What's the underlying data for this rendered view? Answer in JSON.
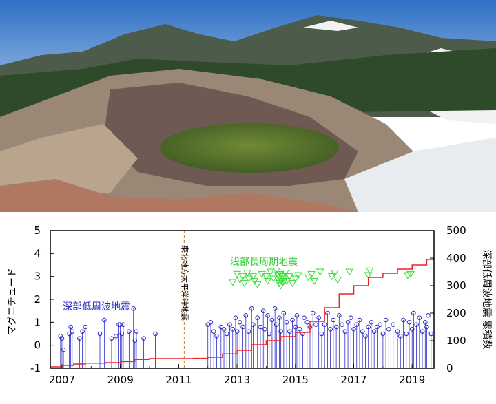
{
  "chart_data": {
    "type": "scatter",
    "title": "",
    "xlabel": "",
    "ylabel_left": "マグニチュード",
    "ylabel_right": "深部低周波地震 累積数",
    "xlim": [
      2006.6,
      2019.75
    ],
    "ylim_left": [
      -1,
      5
    ],
    "ylim_right": [
      0,
      500
    ],
    "x_ticks": [
      2007,
      2009,
      2011,
      2013,
      2015,
      2017,
      2019
    ],
    "y_ticks_left": [
      -1,
      0,
      1,
      2,
      3,
      4,
      5
    ],
    "y_ticks_right": [
      0,
      100,
      200,
      300,
      400,
      500
    ],
    "grid": false,
    "colors": {
      "deep": "#2a2ac8",
      "shallow": "#33dd33",
      "cumulative": "#ee2222",
      "event_line": "#e08a3c"
    },
    "annotations": [
      {
        "text": "深部低周波地震",
        "color": "#2a2ac8"
      },
      {
        "text": "浅部長周期地震",
        "color": "#33cc33"
      },
      {
        "text": "東北地方太平洋沖地震",
        "x": 2011.19,
        "orientation": "vertical"
      }
    ],
    "series": [
      {
        "name": "深部低周波地震",
        "style": "stem",
        "points": [
          [
            2006.95,
            0.4
          ],
          [
            2007.0,
            0.3
          ],
          [
            2007.05,
            -0.2
          ],
          [
            2007.25,
            0.5
          ],
          [
            2007.3,
            0.8
          ],
          [
            2007.35,
            0.6
          ],
          [
            2007.6,
            0.3
          ],
          [
            2007.7,
            0.6
          ],
          [
            2007.8,
            0.8
          ],
          [
            2008.3,
            0.5
          ],
          [
            2008.45,
            1.1
          ],
          [
            2008.7,
            0.3
          ],
          [
            2008.85,
            0.4
          ],
          [
            2008.95,
            0.9
          ],
          [
            2009.0,
            0.9
          ],
          [
            2009.05,
            0.5
          ],
          [
            2009.1,
            0.9
          ],
          [
            2009.3,
            0.6
          ],
          [
            2009.45,
            1.6
          ],
          [
            2009.5,
            0.2
          ],
          [
            2009.55,
            0.6
          ],
          [
            2009.8,
            0.3
          ],
          [
            2010.2,
            0.5
          ],
          [
            2012.0,
            0.9
          ],
          [
            2012.1,
            1.0
          ],
          [
            2012.2,
            0.6
          ],
          [
            2012.3,
            0.4
          ],
          [
            2012.45,
            0.8
          ],
          [
            2012.55,
            0.7
          ],
          [
            2012.65,
            0.5
          ],
          [
            2012.75,
            0.9
          ],
          [
            2012.85,
            0.7
          ],
          [
            2012.95,
            1.2
          ],
          [
            2013.0,
            0.6
          ],
          [
            2013.1,
            1.0
          ],
          [
            2013.2,
            0.8
          ],
          [
            2013.3,
            1.3
          ],
          [
            2013.4,
            0.6
          ],
          [
            2013.5,
            1.6
          ],
          [
            2013.55,
            0.9
          ],
          [
            2013.7,
            1.2
          ],
          [
            2013.8,
            0.8
          ],
          [
            2013.9,
            1.5
          ],
          [
            2013.95,
            0.7
          ],
          [
            2014.05,
            1.3
          ],
          [
            2014.1,
            0.5
          ],
          [
            2014.2,
            1.1
          ],
          [
            2014.3,
            1.6
          ],
          [
            2014.35,
            0.9
          ],
          [
            2014.45,
            1.2
          ],
          [
            2014.5,
            0.6
          ],
          [
            2014.6,
            1.4
          ],
          [
            2014.7,
            1.0
          ],
          [
            2014.8,
            0.6
          ],
          [
            2014.9,
            1.1
          ],
          [
            2015.0,
            0.8
          ],
          [
            2015.05,
            1.3
          ],
          [
            2015.15,
            0.7
          ],
          [
            2015.25,
            0.5
          ],
          [
            2015.3,
            1.2
          ],
          [
            2015.4,
            1.0
          ],
          [
            2015.5,
            0.8
          ],
          [
            2015.6,
            1.4
          ],
          [
            2015.7,
            0.9
          ],
          [
            2015.8,
            1.2
          ],
          [
            2015.9,
            0.5
          ],
          [
            2016.0,
            0.9
          ],
          [
            2016.1,
            1.4
          ],
          [
            2016.2,
            0.7
          ],
          [
            2016.3,
            1.1
          ],
          [
            2016.4,
            0.8
          ],
          [
            2016.5,
            1.3
          ],
          [
            2016.6,
            0.9
          ],
          [
            2016.7,
            0.6
          ],
          [
            2016.8,
            1.0
          ],
          [
            2016.9,
            1.2
          ],
          [
            2017.0,
            0.7
          ],
          [
            2017.1,
            0.9
          ],
          [
            2017.2,
            1.1
          ],
          [
            2017.3,
            0.6
          ],
          [
            2017.4,
            0.4
          ],
          [
            2017.5,
            0.8
          ],
          [
            2017.6,
            1.0
          ],
          [
            2017.7,
            0.6
          ],
          [
            2017.8,
            0.8
          ],
          [
            2017.9,
            0.9
          ],
          [
            2018.0,
            0.5
          ],
          [
            2018.1,
            1.1
          ],
          [
            2018.2,
            0.7
          ],
          [
            2018.35,
            0.9
          ],
          [
            2018.5,
            0.6
          ],
          [
            2018.6,
            0.4
          ],
          [
            2018.7,
            1.1
          ],
          [
            2018.8,
            0.5
          ],
          [
            2018.9,
            1.0
          ],
          [
            2019.0,
            0.7
          ],
          [
            2019.05,
            1.4
          ],
          [
            2019.15,
            0.9
          ],
          [
            2019.25,
            1.2
          ],
          [
            2019.35,
            0.6
          ],
          [
            2019.45,
            1.0
          ],
          [
            2019.5,
            0.8
          ],
          [
            2019.55,
            1.3
          ],
          [
            2019.65,
            0.5
          ]
        ]
      },
      {
        "name": "浅部長周期地震",
        "style": "triangle",
        "points": [
          [
            2012.85,
            2.75
          ],
          [
            2013.0,
            3.1
          ],
          [
            2013.1,
            2.85
          ],
          [
            2013.2,
            3.0
          ],
          [
            2013.25,
            2.7
          ],
          [
            2013.35,
            3.15
          ],
          [
            2013.4,
            2.9
          ],
          [
            2013.55,
            3.0
          ],
          [
            2013.6,
            2.8
          ],
          [
            2013.7,
            2.65
          ],
          [
            2013.85,
            3.1
          ],
          [
            2014.0,
            3.0
          ],
          [
            2014.05,
            2.8
          ],
          [
            2014.15,
            3.2
          ],
          [
            2014.25,
            2.9
          ],
          [
            2014.35,
            3.25
          ],
          [
            2014.4,
            3.05
          ],
          [
            2014.42,
            2.85
          ],
          [
            2014.44,
            2.7
          ],
          [
            2014.46,
            2.95
          ],
          [
            2014.48,
            3.1
          ],
          [
            2014.5,
            2.6
          ],
          [
            2014.52,
            2.8
          ],
          [
            2014.55,
            3.0
          ],
          [
            2014.58,
            2.75
          ],
          [
            2014.6,
            2.9
          ],
          [
            2014.65,
            3.15
          ],
          [
            2014.7,
            2.8
          ],
          [
            2014.8,
            3.0
          ],
          [
            2014.9,
            2.7
          ],
          [
            2015.0,
            2.9
          ],
          [
            2015.1,
            3.05
          ],
          [
            2015.45,
            2.95
          ],
          [
            2015.55,
            3.1
          ],
          [
            2015.65,
            2.8
          ],
          [
            2015.85,
            3.2
          ],
          [
            2016.25,
            3.0
          ],
          [
            2016.35,
            3.15
          ],
          [
            2016.45,
            2.85
          ],
          [
            2016.85,
            3.2
          ],
          [
            2017.5,
            3.05
          ],
          [
            2017.55,
            3.25
          ],
          [
            2018.85,
            3.05
          ],
          [
            2018.95,
            3.1
          ]
        ]
      },
      {
        "name": "深部低周波地震 累積数",
        "axis": "right",
        "style": "step-line",
        "points": [
          [
            2006.6,
            5
          ],
          [
            2007.0,
            10
          ],
          [
            2007.4,
            15
          ],
          [
            2007.8,
            18
          ],
          [
            2008.5,
            20
          ],
          [
            2009.0,
            24
          ],
          [
            2009.5,
            32
          ],
          [
            2010.0,
            35
          ],
          [
            2011.5,
            36
          ],
          [
            2012.0,
            40
          ],
          [
            2012.5,
            52
          ],
          [
            2013.0,
            65
          ],
          [
            2013.5,
            85
          ],
          [
            2014.0,
            100
          ],
          [
            2014.5,
            115
          ],
          [
            2015.0,
            130
          ],
          [
            2015.5,
            170
          ],
          [
            2016.0,
            220
          ],
          [
            2016.5,
            270
          ],
          [
            2017.0,
            300
          ],
          [
            2017.5,
            330
          ],
          [
            2018.0,
            345
          ],
          [
            2018.5,
            360
          ],
          [
            2019.0,
            375
          ],
          [
            2019.5,
            395
          ],
          [
            2019.75,
            400
          ]
        ]
      }
    ]
  }
}
